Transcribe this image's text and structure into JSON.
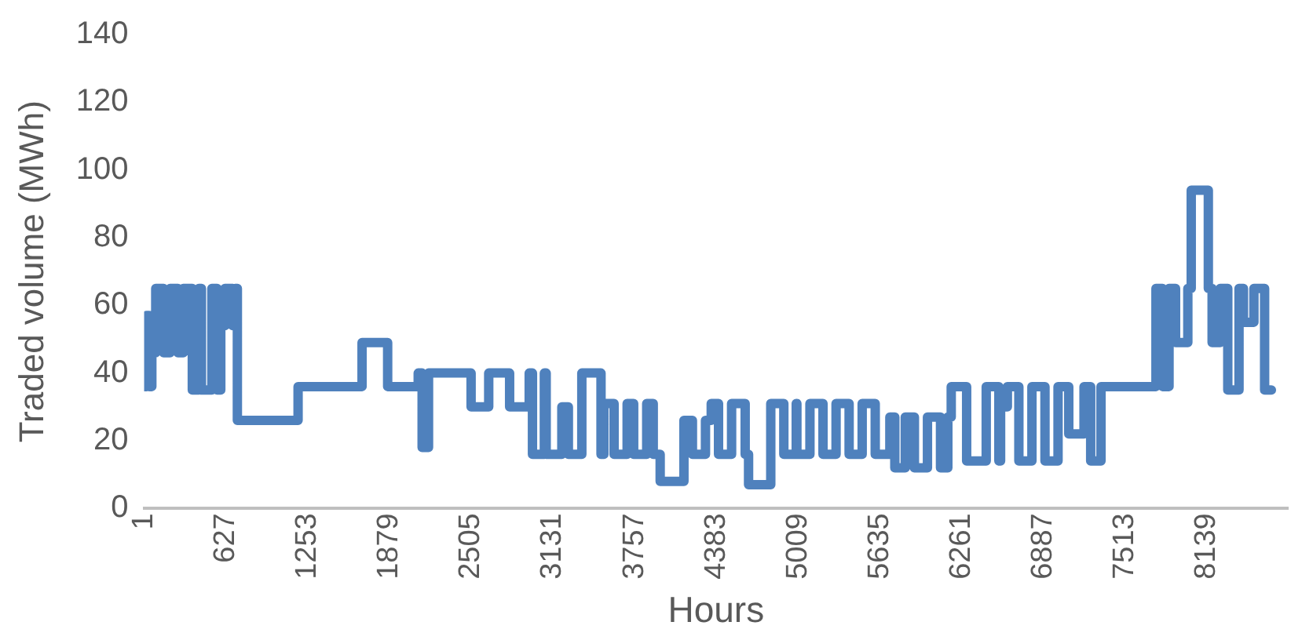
{
  "chart_data": {
    "type": "step",
    "xlabel": "Hours",
    "ylabel": "Traded volume (MWh)",
    "xlim": [
      1,
      8760
    ],
    "xticks": [
      1,
      627,
      1253,
      1879,
      2505,
      3131,
      3757,
      4383,
      5009,
      5635,
      6261,
      6887,
      7513,
      8139
    ],
    "ylim": [
      0,
      140
    ],
    "yticks": [
      0,
      20,
      40,
      60,
      80,
      100,
      120,
      140
    ],
    "grid": false,
    "legend": false,
    "marker": "none",
    "series": [
      {
        "color": "#4f81bd",
        "x": [
          1,
          20,
          40,
          60,
          70,
          90,
          150,
          200,
          260,
          301,
          353,
          370,
          420,
          440,
          520,
          560,
          588,
          620,
          680,
          700,
          715,
          1175,
          1180,
          1660,
          1670,
          1860,
          1866,
          2088,
          2100,
          2130,
          2179,
          2480,
          2505,
          2640,
          2780,
          2800,
          2950,
          2975,
          3066,
          3080,
          3200,
          3250,
          3353,
          3500,
          3522,
          3600,
          3700,
          3750,
          3850,
          3900,
          3953,
          4100,
          4135,
          4200,
          4300,
          4344,
          4400,
          4500,
          4604,
          4630,
          4790,
          4800,
          4900,
          4995,
          5000,
          5047,
          5100,
          5200,
          5300,
          5400,
          5500,
          5600,
          5712,
          5750,
          5830,
          5900,
          6000,
          6100,
          6156,
          6182,
          6300,
          6450,
          6547,
          6560,
          6612,
          6700,
          6800,
          6900,
          7000,
          7082,
          7199,
          7250,
          7329,
          7733,
          7750,
          7800,
          7850,
          7900,
          7994,
          8020,
          8140,
          8151,
          8180,
          8242,
          8300,
          8386,
          8420,
          8500,
          8582,
          8634
        ],
        "values": [
          36,
          57,
          36,
          57,
          46,
          65,
          46,
          65,
          46,
          65,
          65,
          35,
          65,
          35,
          65,
          35,
          54,
          65,
          54,
          65,
          26,
          26,
          36,
          36,
          49,
          49,
          36,
          36,
          40,
          18,
          40,
          40,
          30,
          40,
          40,
          30,
          40,
          16,
          40,
          16,
          30,
          16,
          40,
          16,
          31,
          16,
          31,
          16,
          31,
          16,
          8,
          8,
          26,
          16,
          26,
          31,
          16,
          31,
          16,
          7,
          7,
          31,
          16,
          31,
          16,
          16,
          31,
          16,
          31,
          16,
          31,
          16,
          27,
          12,
          27,
          12,
          27,
          12,
          27,
          36,
          14,
          36,
          14,
          30,
          36,
          14,
          36,
          14,
          36,
          22,
          36,
          14,
          36,
          36,
          65,
          36,
          65,
          49,
          65,
          94,
          94,
          65,
          49,
          65,
          35,
          65,
          55,
          65,
          35,
          35
        ]
      }
    ]
  }
}
